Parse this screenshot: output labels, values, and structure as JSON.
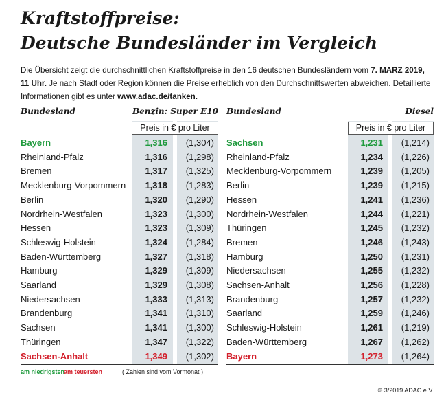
{
  "title": [
    "Kraftstoffpreise:",
    "Deutsche Bundesländer im Vergleich"
  ],
  "intro": [
    {
      "text": "Die Übersicht zeigt die durchschnittlichen Kraftstoffpreise in den 16 deutschen Bundesländern vom ",
      "bold": false
    },
    {
      "text": "7. MARZ 2019, 11 Uhr.",
      "bold": true
    },
    {
      "text": " Je nach Stadt oder Region können die Preise erheblich von den Durchschnittswerten abweichen. Detaillierte Informationen gibt es unter ",
      "bold": false
    },
    {
      "text": "www.adac.de/tanken.",
      "bold": true
    }
  ],
  "tables": [
    {
      "header": {
        "label": "Bundesland",
        "fuel": "Benzin:  Super E10",
        "unit": "Preis in € pro Liter"
      },
      "rows": [
        [
          "Bayern",
          "1,316",
          "(1,304)"
        ],
        [
          "Rheinland-Pfalz",
          "1,316",
          "(1,298)"
        ],
        [
          "Bremen",
          "1,317",
          "(1,325)"
        ],
        [
          "Mecklenburg-Vorpommern",
          "1,318",
          "(1,283)"
        ],
        [
          "Berlin",
          "1,320",
          "(1,290)"
        ],
        [
          "Nordrhein-Westfalen",
          "1,323",
          "(1,300)"
        ],
        [
          "Hessen",
          "1,323",
          "(1,309)"
        ],
        [
          "Schleswig-Holstein",
          "1,324",
          "(1,284)"
        ],
        [
          "Baden-Württemberg",
          "1,327",
          "(1,318)"
        ],
        [
          "Hamburg",
          "1,329",
          "(1,309)"
        ],
        [
          "Saarland",
          "1,329",
          "(1,308)"
        ],
        [
          "Niedersachsen",
          "1,333",
          "(1,313)"
        ],
        [
          "Brandenburg",
          "1,341",
          "(1,310)"
        ],
        [
          "Sachsen",
          "1,341",
          "(1,300)"
        ],
        [
          "Thüringen",
          "1,347",
          "(1,322)"
        ],
        [
          "Sachsen-Anhalt",
          "1,349",
          "(1,302)"
        ]
      ]
    },
    {
      "header": {
        "label": "Bundesland",
        "fuel": "Diesel",
        "unit": "Preis in € pro Liter"
      },
      "rows": [
        [
          "Sachsen",
          "1,231",
          "(1,214)"
        ],
        [
          "Rheinland-Pfalz",
          "1,234",
          "(1,226)"
        ],
        [
          "Mecklenburg-Vorpommern",
          "1,239",
          "(1,205)"
        ],
        [
          "Berlin",
          "1,239",
          "(1,215)"
        ],
        [
          "Hessen",
          "1,241",
          "(1,236)"
        ],
        [
          "Nordrhein-Westfalen",
          "1,244",
          "(1,221)"
        ],
        [
          "Thüringen",
          "1,245",
          "(1,232)"
        ],
        [
          "Bremen",
          "1,246",
          "(1,243)"
        ],
        [
          "Hamburg",
          "1,250",
          "(1,231)"
        ],
        [
          "Niedersachsen",
          "1,255",
          "(1,232)"
        ],
        [
          "Sachsen-Anhalt",
          "1,256",
          "(1,228)"
        ],
        [
          "Brandenburg",
          "1,257",
          "(1,232)"
        ],
        [
          "Saarland",
          "1,259",
          "(1,246)"
        ],
        [
          "Schleswig-Holstein",
          "1,261",
          "(1,219)"
        ],
        [
          "Baden-Württemberg",
          "1,267",
          "(1,262)"
        ],
        [
          "Bayern",
          "1,273",
          "(1,264)"
        ]
      ]
    }
  ],
  "legend": [
    {
      "label": "am niedrigsten",
      "color": "#1e9a3c"
    },
    {
      "label": "am teuersten",
      "color": "#d3202c"
    }
  ],
  "legend_note": "( Zahlen sind vom Vormonat )",
  "copyright": "© 3/2019 ADAC e.V."
}
